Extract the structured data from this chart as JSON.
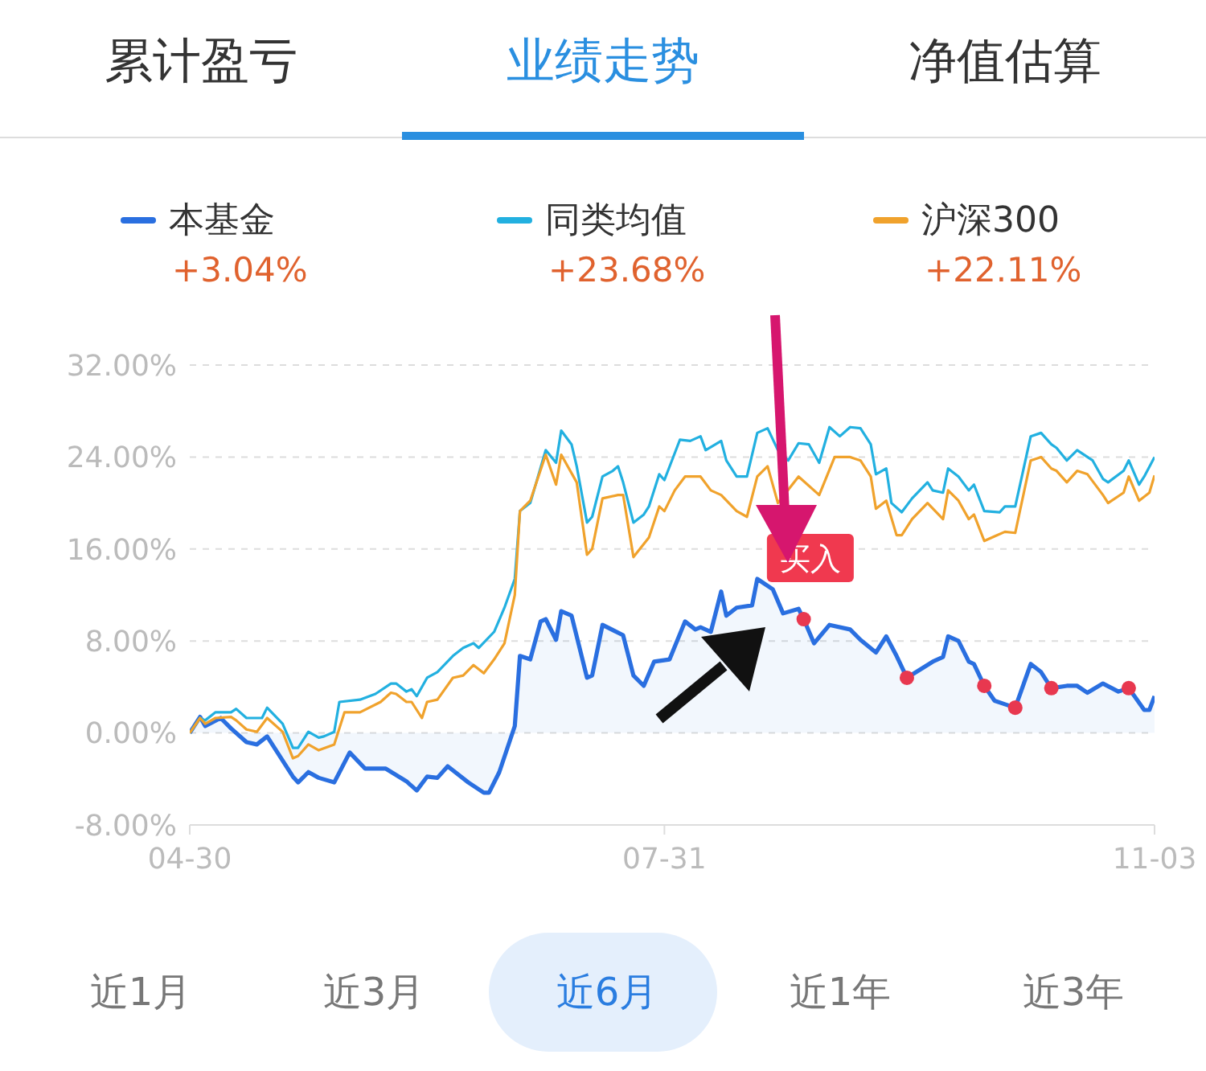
{
  "chart_data": {
    "type": "line",
    "xlim": [
      "--04-30",
      "--11-03"
    ],
    "xticks": [
      {
        "value": "--04-30",
        "label": "04-30"
      },
      {
        "value": "--07-31",
        "label": "07-31"
      },
      {
        "value": "--11-03",
        "label": "11-03"
      }
    ],
    "ylim": [
      -8,
      32
    ],
    "yticks": [
      {
        "value": -8,
        "label": "-8.00%"
      },
      {
        "value": 0,
        "label": "0.00%"
      },
      {
        "value": 8,
        "label": "8.00%"
      },
      {
        "value": 16,
        "label": "16.00%"
      },
      {
        "value": 24,
        "label": "24.00%"
      },
      {
        "value": 32,
        "label": "32.00%"
      }
    ],
    "grid": "y",
    "legend": "top",
    "series": [
      {
        "name": "本基金",
        "type": "area",
        "color": "#2a6fe0",
        "x": [
          "--04-30",
          "--05-02",
          "--05-03",
          "--05-06",
          "--05-08",
          "--05-11",
          "--05-13",
          "--05-15",
          "--05-20",
          "--05-21",
          "--05-23",
          "--05-25",
          "--05-28",
          "--05-31",
          "--06-03",
          "--06-07",
          "--06-11",
          "--06-13",
          "--06-15",
          "--06-17",
          "--06-19",
          "--06-23",
          "--06-26",
          "--06-27",
          "--06-29",
          "--07-02",
          "--07-03",
          "--07-05",
          "--07-07",
          "--07-08",
          "--07-10",
          "--07-11",
          "--07-13",
          "--07-16",
          "--07-17",
          "--07-19",
          "--07-23",
          "--07-25",
          "--07-27",
          "--07-29",
          "--08-01",
          "--08-04",
          "--08-06",
          "--08-07",
          "--08-09",
          "--08-11",
          "--08-12",
          "--08-14",
          "--08-17",
          "--08-18",
          "--08-21",
          "--08-23",
          "--08-26",
          "--08-27",
          "--08-29",
          "--09-01",
          "--09-05",
          "--09-07",
          "--09-10",
          "--09-12",
          "--09-14",
          "--09-16",
          "--09-21",
          "--09-23",
          "--09-24",
          "--09-26",
          "--09-28",
          "--09-29",
          "--10-01",
          "--10-03",
          "--10-05",
          "--10-07",
          "--10-10",
          "--10-12",
          "--10-14",
          "--10-17",
          "--10-19",
          "--10-21",
          "--10-24",
          "--10-27",
          "--10-29",
          "--11-01",
          "--11-02",
          "--11-03"
        ],
        "values": [
          0,
          1.4,
          0.6,
          1.3,
          0.4,
          -0.8,
          -1.0,
          -0.3,
          -3.8,
          -4.3,
          -3.4,
          -3.9,
          -4.3,
          -1.7,
          -3.1,
          -3.1,
          -4.2,
          -5.0,
          -3.8,
          -3.9,
          -2.9,
          -4.3,
          -5.2,
          -5.2,
          -3.4,
          0.6,
          6.7,
          6.4,
          9.7,
          9.9,
          8.1,
          10.6,
          10.2,
          4.8,
          5.0,
          9.4,
          8.5,
          5.0,
          4.1,
          6.2,
          6.4,
          9.7,
          9.0,
          9.2,
          8.8,
          12.3,
          10.2,
          10.9,
          11.1,
          13.4,
          12.5,
          10.4,
          10.8,
          9.9,
          7.8,
          9.4,
          9.0,
          8.1,
          7.0,
          8.4,
          6.7,
          4.8,
          6.2,
          6.6,
          8.4,
          8.0,
          6.2,
          6.0,
          4.1,
          2.8,
          2.5,
          2.2,
          6.0,
          5.3,
          3.9,
          4.1,
          4.1,
          3.5,
          4.3,
          3.6,
          3.9,
          2.0,
          2.0,
          3.2
        ]
      },
      {
        "name": "同类均值",
        "color": "#22b0e0",
        "x": [
          "--04-30",
          "--05-02",
          "--05-03",
          "--05-05",
          "--05-08",
          "--05-09",
          "--05-11",
          "--05-14",
          "--05-15",
          "--05-18",
          "--05-20",
          "--05-21",
          "--05-23",
          "--05-25",
          "--05-26",
          "--05-28",
          "--05-29",
          "--06-02",
          "--06-05",
          "--06-08",
          "--06-09",
          "--06-11",
          "--06-12",
          "--06-13",
          "--06-15",
          "--06-17",
          "--06-20",
          "--06-22",
          "--06-24",
          "--06-25",
          "--06-28",
          "--06-30",
          "--07-02",
          "--07-03",
          "--07-05",
          "--07-08",
          "--07-10",
          "--07-11",
          "--07-13",
          "--07-14",
          "--07-16",
          "--07-17",
          "--07-19",
          "--07-21",
          "--07-22",
          "--07-23",
          "--07-25",
          "--07-27",
          "--07-28",
          "--07-30",
          "--07-31",
          "--08-03",
          "--08-05",
          "--08-07",
          "--08-08",
          "--08-11",
          "--08-12",
          "--08-14",
          "--08-16",
          "--08-18",
          "--08-20",
          "--08-22",
          "--08-24",
          "--08-26",
          "--08-28",
          "--08-30",
          "--09-01",
          "--09-03",
          "--09-05",
          "--09-07",
          "--09-09",
          "--09-10",
          "--09-12",
          "--09-13",
          "--09-15",
          "--09-17",
          "--09-20",
          "--09-21",
          "--09-23",
          "--09-24",
          "--09-26",
          "--09-28",
          "--09-29",
          "--10-01",
          "--10-04",
          "--10-05",
          "--10-07",
          "--10-10",
          "--10-12",
          "--10-14",
          "--10-15",
          "--10-17",
          "--10-19",
          "--10-22",
          "--10-24",
          "--10-25",
          "--10-28",
          "--10-29",
          "--10-31",
          "--11-01",
          "--11-03"
        ],
        "values": [
          0,
          1.3,
          1.1,
          1.8,
          1.8,
          2.1,
          1.3,
          1.3,
          2.2,
          0.8,
          -1.3,
          -1.3,
          0.1,
          -0.4,
          -0.3,
          0.1,
          2.7,
          2.9,
          3.4,
          4.3,
          4.3,
          3.6,
          3.8,
          3.2,
          4.8,
          5.3,
          6.7,
          7.4,
          7.8,
          7.4,
          8.8,
          10.9,
          13.4,
          19.3,
          20.0,
          24.6,
          23.5,
          26.3,
          25.1,
          23.2,
          18.3,
          18.8,
          22.3,
          22.8,
          23.2,
          21.8,
          18.3,
          19.0,
          19.7,
          22.5,
          22.0,
          25.5,
          25.4,
          25.8,
          24.6,
          25.4,
          23.7,
          22.3,
          22.3,
          26.1,
          26.5,
          24.6,
          23.7,
          25.2,
          25.1,
          23.5,
          26.6,
          25.8,
          26.6,
          26.5,
          25.1,
          22.5,
          23.0,
          20.0,
          19.2,
          20.4,
          21.8,
          21.1,
          20.9,
          23.0,
          22.3,
          21.1,
          21.6,
          19.3,
          19.2,
          19.7,
          19.7,
          25.8,
          26.1,
          25.1,
          24.8,
          23.7,
          24.6,
          23.7,
          22.1,
          21.8,
          22.8,
          23.7,
          21.6,
          22.3,
          24.0
        ]
      },
      {
        "name": "沪深300",
        "color": "#f0a22c",
        "x": [
          "--04-30",
          "--05-02",
          "--05-03",
          "--05-05",
          "--05-08",
          "--05-09",
          "--05-11",
          "--05-13",
          "--05-15",
          "--05-18",
          "--05-20",
          "--05-21",
          "--05-23",
          "--05-25",
          "--05-28",
          "--05-30",
          "--06-02",
          "--06-06",
          "--06-08",
          "--06-09",
          "--06-11",
          "--06-12",
          "--06-14",
          "--06-15",
          "--06-17",
          "--06-20",
          "--06-22",
          "--06-24",
          "--06-26",
          "--06-28",
          "--06-30",
          "--07-02",
          "--07-03",
          "--07-05",
          "--07-08",
          "--07-10",
          "--07-11",
          "--07-14",
          "--07-16",
          "--07-17",
          "--07-19",
          "--07-22",
          "--07-23",
          "--07-25",
          "--07-28",
          "--07-30",
          "--07-31",
          "--08-02",
          "--08-04",
          "--08-07",
          "--08-09",
          "--08-11",
          "--08-14",
          "--08-16",
          "--08-18",
          "--08-20",
          "--08-22",
          "--08-26",
          "--08-30",
          "--09-02",
          "--09-05",
          "--09-07",
          "--09-09",
          "--09-10",
          "--09-12",
          "--09-14",
          "--09-15",
          "--09-17",
          "--09-20",
          "--09-23",
          "--09-24",
          "--09-26",
          "--09-28",
          "--09-29",
          "--10-01",
          "--10-03",
          "--10-05",
          "--10-07",
          "--10-10",
          "--10-12",
          "--10-14",
          "--10-15",
          "--10-17",
          "--10-19",
          "--10-21",
          "--10-24",
          "--10-25",
          "--10-28",
          "--10-29",
          "--10-31",
          "--11-02",
          "--11-03"
        ],
        "values": [
          0,
          1.3,
          0.8,
          1.3,
          1.4,
          1.1,
          0.3,
          0.1,
          1.3,
          0.1,
          -2.2,
          -2.0,
          -1.0,
          -1.5,
          -1.0,
          1.8,
          1.8,
          2.7,
          3.5,
          3.4,
          2.7,
          2.7,
          1.3,
          2.7,
          2.9,
          4.8,
          5.0,
          5.9,
          5.2,
          6.4,
          7.8,
          12.0,
          19.3,
          20.2,
          24.2,
          21.6,
          24.2,
          21.8,
          15.5,
          16.0,
          20.4,
          20.7,
          20.7,
          15.3,
          17.0,
          19.7,
          19.3,
          21.1,
          22.3,
          22.3,
          21.1,
          20.7,
          19.3,
          18.8,
          22.3,
          23.2,
          20.0,
          22.3,
          20.7,
          24.0,
          24.0,
          23.7,
          22.3,
          19.5,
          20.2,
          17.2,
          17.2,
          18.6,
          20.0,
          18.6,
          21.1,
          20.2,
          18.6,
          19.0,
          16.7,
          17.1,
          17.5,
          17.4,
          23.7,
          24.0,
          23.0,
          22.8,
          21.8,
          22.8,
          22.5,
          20.7,
          20.0,
          20.9,
          22.3,
          20.2,
          20.9,
          22.4
        ]
      },
      {
        "type": "scatter",
        "marker": "circle",
        "color": "#e8384f",
        "x": [
          "--08-27",
          "--09-16",
          "--10-01",
          "--10-07",
          "--10-14",
          "--10-29"
        ],
        "values": [
          9.9,
          4.8,
          4.1,
          2.2,
          3.9,
          3.9
        ]
      }
    ],
    "annotations": [
      "累计盈亏",
      "业绩走势",
      "净值估算",
      "+3.04%",
      "+23.68%",
      "+22.11%",
      "近1月",
      "近3月",
      "近6月",
      "近1年",
      "近3年",
      {
        "text": "买入",
        "x": "--08-18",
        "y": 13.4
      }
    ]
  }
}
